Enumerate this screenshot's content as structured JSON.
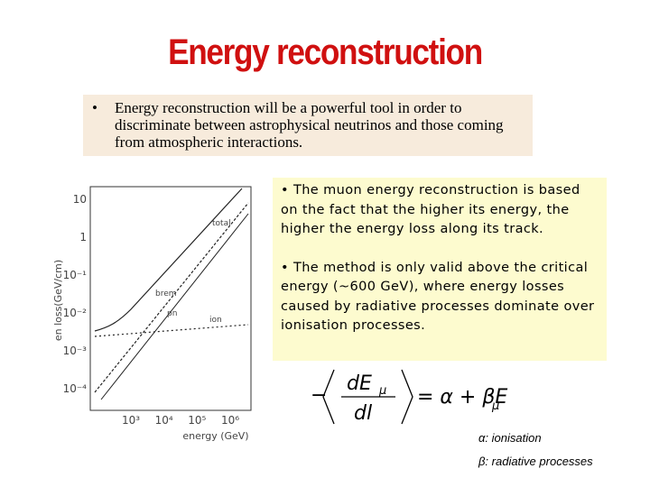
{
  "title": "Energy reconstruction",
  "intro": {
    "bullet": "•",
    "text": "Energy reconstruction will be a powerful tool in order to discriminate between astrophysical neutrinos and those coming from atmospheric interactions."
  },
  "figure": {
    "y_label": "en loss(GeV/cm)",
    "x_label": "energy (GeV)",
    "y_ticks": [
      "10",
      "1",
      "10⁻¹",
      "10⁻²",
      "10⁻³",
      "10⁻⁴"
    ],
    "x_ticks": [
      "10³",
      "10⁴",
      "10⁵",
      "10⁶"
    ],
    "curves": [
      "total",
      "brem",
      "pn",
      "ion"
    ]
  },
  "notes": {
    "paragraphs": [
      "• The muon energy reconstruction is based on the fact that the higher its energy, the higher the energy loss along its track.",
      "• The method is only valid above the critical energy (~600 GeV), where energy losses caused by radiative processes dominate over ionisation processes."
    ]
  },
  "formula": {
    "minus": "−",
    "numerator": "dE",
    "numerator_sub": "μ",
    "denominator": "dl",
    "rhs": "= α + βE",
    "rhs_sub": "μ"
  },
  "legend": [
    "α: ionisation",
    "β: radiative processes"
  ]
}
